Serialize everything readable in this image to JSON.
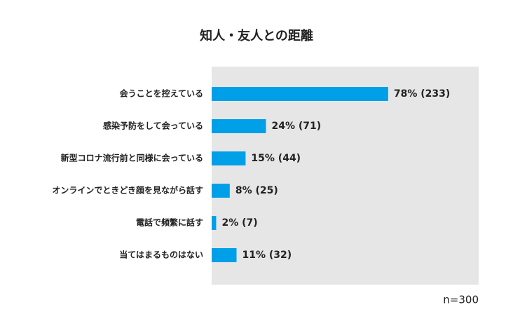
{
  "chart_data": {
    "type": "hbar",
    "title": "知人・友人との距離",
    "categories": [
      "会うことを控えている",
      "感染予防をして会っている",
      "新型コロナ流行前と同様に会っている",
      "オンラインでときどき顔を見ながら話す",
      "電話で頻繁に話す",
      "当てはまるものはない"
    ],
    "values": [
      78,
      24,
      15,
      8,
      2,
      11
    ],
    "value_labels": [
      "78% (233)",
      "24% (71)",
      "15% (44)",
      "8% (25)",
      "2% (7)",
      "11% (32)"
    ],
    "color": "#00a0e9",
    "xlim": [
      0,
      118
    ],
    "annotation": "n=300"
  }
}
